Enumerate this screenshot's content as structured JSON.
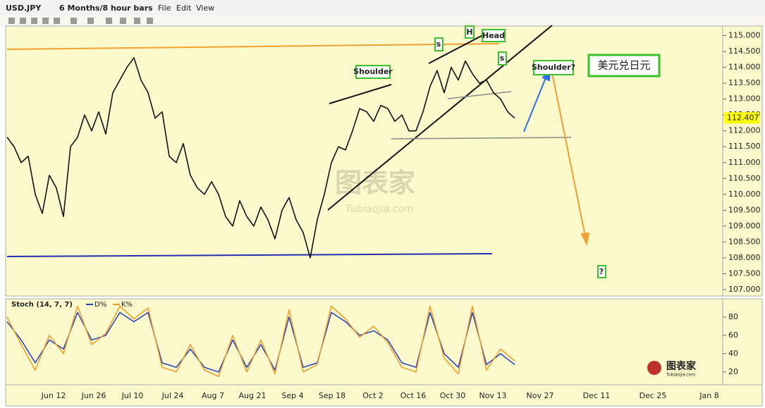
{
  "toolbar": {
    "symbol": "USD.JPY",
    "period": "6 Months/8 hour bars",
    "menus": [
      "File",
      "Edit",
      "View"
    ]
  },
  "chart_data": [
    {
      "type": "line",
      "title": "USD.JPY",
      "last_price": 112.407,
      "series": [
        {
          "name": "USD.JPY",
          "color": "#111111",
          "values": [
            111.8,
            111.5,
            111.0,
            111.2,
            110.0,
            109.4,
            110.6,
            110.2,
            109.3,
            111.5,
            111.8,
            112.5,
            112.0,
            112.6,
            111.9,
            113.2,
            113.6,
            114.0,
            114.3,
            113.6,
            113.2,
            112.4,
            112.6,
            111.2,
            111.0,
            111.6,
            110.6,
            110.2,
            110.0,
            110.4,
            110.0,
            109.3,
            109.0,
            109.8,
            109.3,
            109.0,
            109.6,
            109.2,
            108.6,
            109.5,
            109.9,
            109.2,
            108.8,
            108.0,
            109.2,
            110.0,
            111.0,
            111.5,
            111.4,
            112.0,
            112.7,
            112.6,
            112.3,
            112.8,
            112.7,
            112.3,
            112.5,
            112.0,
            112.0,
            112.6,
            113.4,
            113.9,
            113.2,
            114.0,
            113.6,
            114.2,
            113.8,
            113.5,
            113.6,
            113.2,
            113.0,
            112.6,
            112.4
          ]
        }
      ],
      "ylim": [
        106.8,
        115.3
      ],
      "yticks": [
        {
          "value": 107.0,
          "label": "107.000"
        },
        {
          "value": 107.5,
          "label": "107.500"
        },
        {
          "value": 108.0,
          "label": "108.000"
        },
        {
          "value": 108.5,
          "label": "108.500"
        },
        {
          "value": 109.0,
          "label": "109.000"
        },
        {
          "value": 109.5,
          "label": "109.500"
        },
        {
          "value": 110.0,
          "label": "110.000"
        },
        {
          "value": 110.5,
          "label": "110.500"
        },
        {
          "value": 111.0,
          "label": "111.000"
        },
        {
          "value": 111.5,
          "label": "111.500"
        },
        {
          "value": 112.0,
          "label": "112.000"
        },
        {
          "value": 112.5,
          "label": "112.500"
        },
        {
          "value": 113.0,
          "label": "113.000"
        },
        {
          "value": 113.5,
          "label": "113.500"
        },
        {
          "value": 114.0,
          "label": "114.000"
        },
        {
          "value": 114.5,
          "label": "114.500"
        },
        {
          "value": 115.0,
          "label": "115.000"
        }
      ],
      "annotations": [
        "Shoulder",
        "s",
        "H",
        "Head",
        "s",
        "Shoulder?",
        "美元兑日元",
        "?"
      ],
      "watermark": [
        "图表家",
        "Tubiaojia.com"
      ]
    },
    {
      "type": "line",
      "title": "Stoch (14, 7, 7)",
      "series": [
        {
          "name": "D%",
          "color": "#2040c0",
          "values": [
            75,
            55,
            30,
            55,
            45,
            85,
            55,
            60,
            85,
            75,
            85,
            30,
            25,
            45,
            25,
            20,
            55,
            25,
            50,
            22,
            80,
            25,
            30,
            85,
            75,
            60,
            65,
            55,
            30,
            25,
            85,
            40,
            25,
            85,
            28,
            40,
            28
          ]
        },
        {
          "name": "K%",
          "color": "#f09a20",
          "values": [
            80,
            50,
            22,
            60,
            40,
            92,
            50,
            62,
            92,
            78,
            90,
            25,
            20,
            50,
            22,
            15,
            60,
            20,
            55,
            18,
            88,
            20,
            28,
            92,
            78,
            58,
            70,
            52,
            25,
            20,
            92,
            35,
            18,
            92,
            22,
            45,
            32
          ]
        }
      ],
      "ylim": [
        6,
        100
      ],
      "yticks": [
        20,
        40,
        60,
        80
      ],
      "x_labels": [
        "Jun 12",
        "Jun 26",
        "Jul 10",
        "Jul 24",
        "Aug 7",
        "Aug 21",
        "Sep 4",
        "Sep 18",
        "Oct 2",
        "Oct 16",
        "Oct 30",
        "Nov 13",
        "Nov 27",
        "Dec 11",
        "Dec 25",
        "Jan 8"
      ]
    }
  ]
}
